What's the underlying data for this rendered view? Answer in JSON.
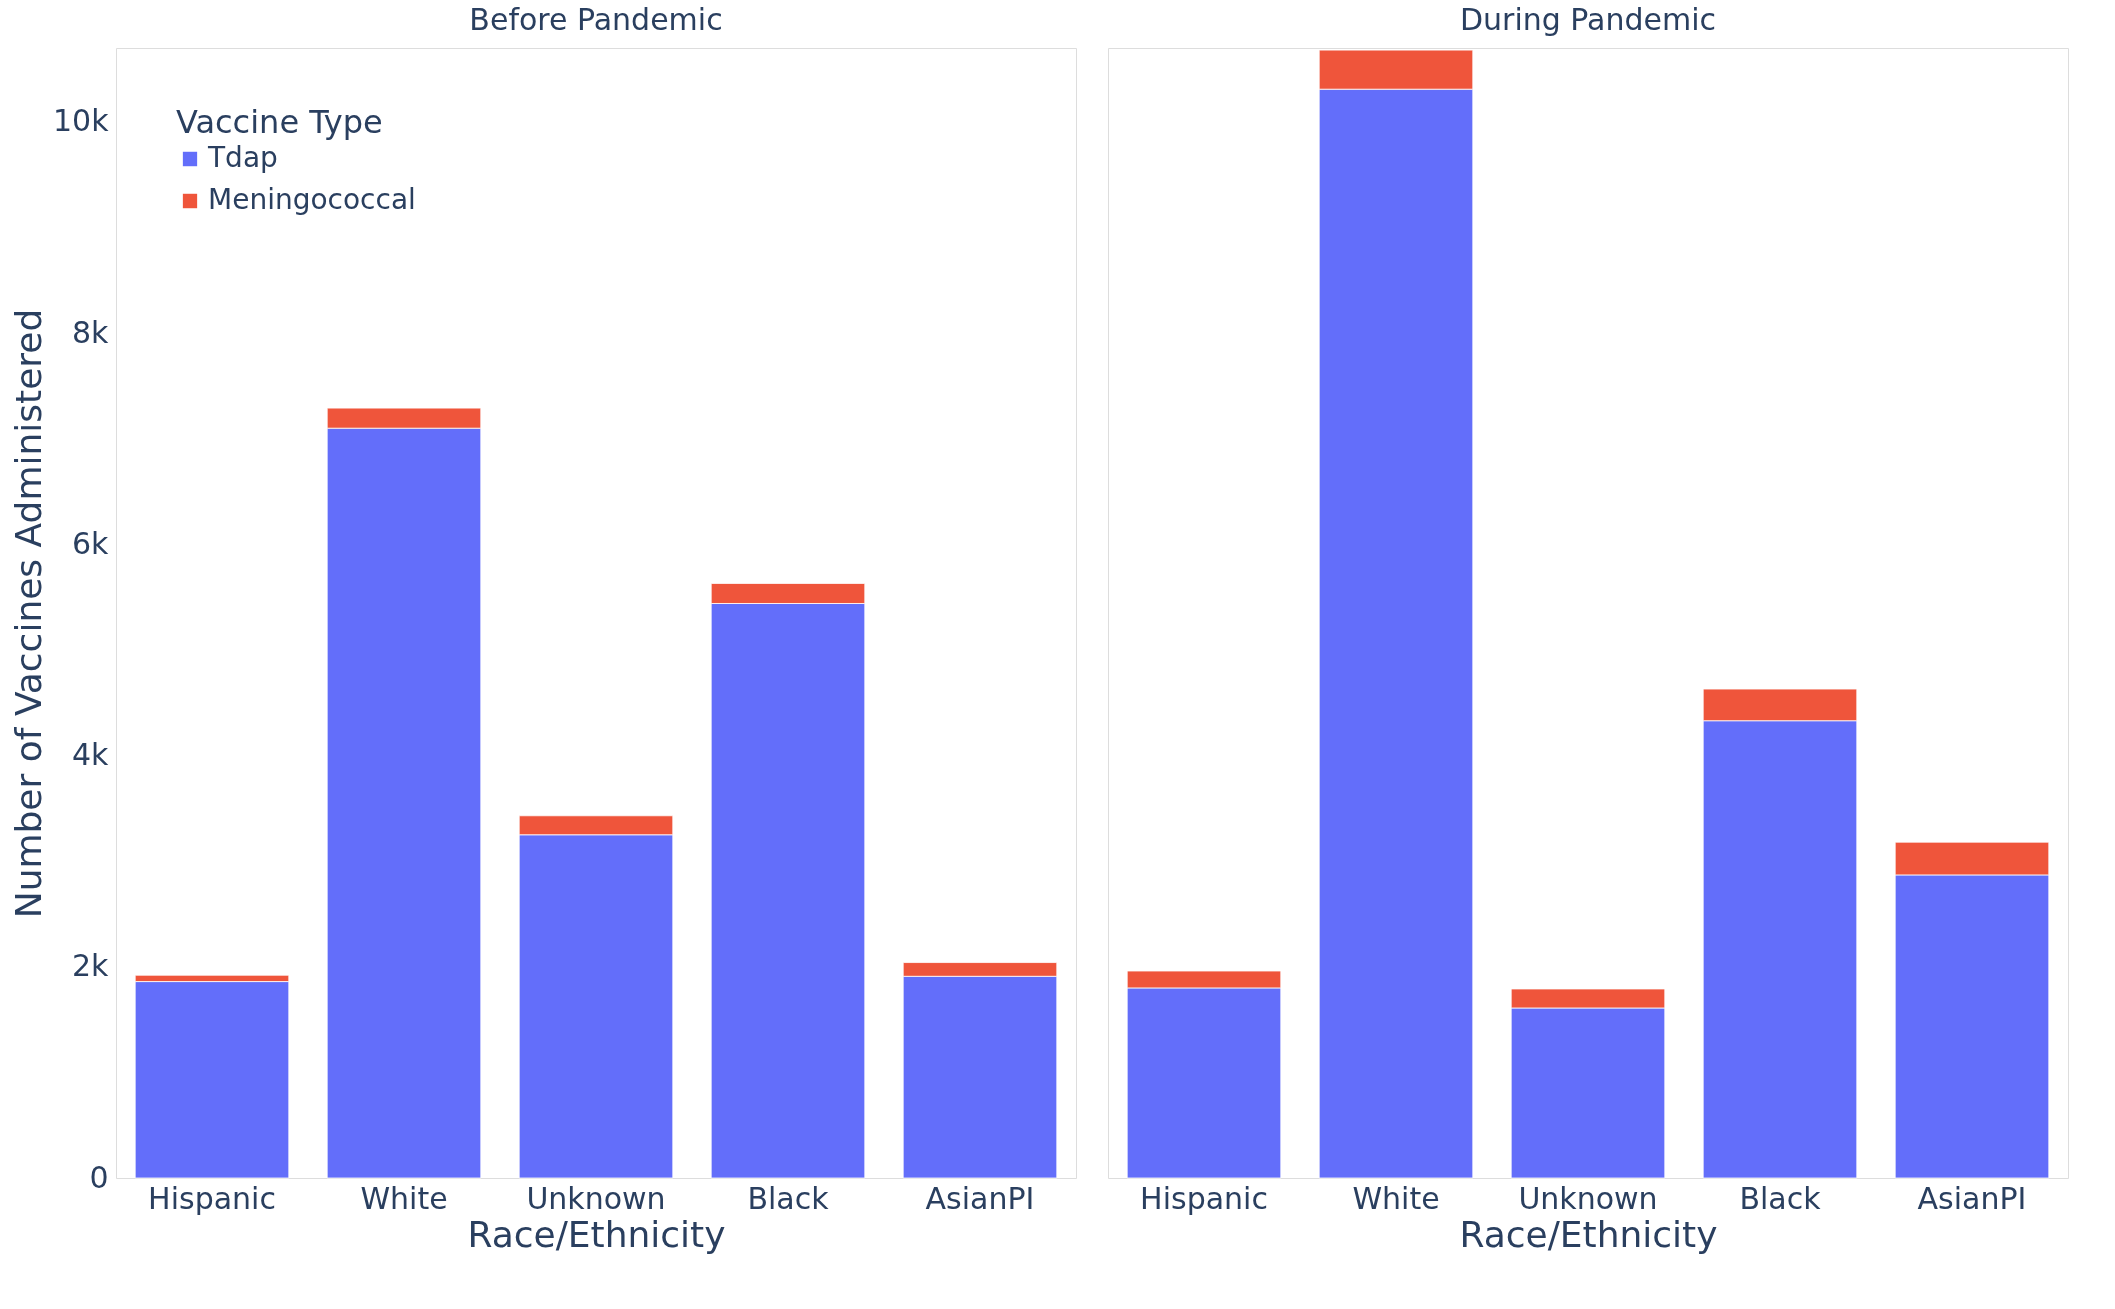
{
  "chart_data": [
    {
      "type": "bar",
      "title": "Before Pandemic",
      "xlabel": "Race/Ethnicity",
      "ylabel": "Number of Vaccines Administered",
      "legend_title": "Vaccine Type",
      "legend": "top left",
      "stacked": true,
      "grid": false,
      "categories": [
        "Hispanic",
        "White",
        "Unknown",
        "Black",
        "AsianPI"
      ],
      "series": [
        {
          "name": "Tdap",
          "color": "#636efa",
          "values": [
            1860,
            7100,
            3250,
            5440,
            1910
          ]
        },
        {
          "name": "Meningococcal",
          "color": "#ef553b",
          "values": [
            60,
            190,
            180,
            190,
            130
          ]
        }
      ],
      "ylim": [
        0,
        10700
      ],
      "yticks": [
        0,
        {
          "value": 2000,
          "label": "2k"
        },
        {
          "value": 4000,
          "label": "4k"
        },
        {
          "value": 6000,
          "label": "6k"
        },
        {
          "value": 8000,
          "label": "8k"
        },
        {
          "value": 10000,
          "label": "10k"
        }
      ]
    },
    {
      "type": "bar",
      "title": "During Pandemic",
      "xlabel": "Race/Ethnicity",
      "legend": false,
      "stacked": true,
      "grid": false,
      "tick_labels": "x",
      "categories": [
        "Hispanic",
        "White",
        "Unknown",
        "Black",
        "AsianPI"
      ],
      "series": [
        {
          "name": "Tdap",
          "color": "#636efa",
          "values": [
            1800,
            10310,
            1610,
            4330,
            2870
          ]
        },
        {
          "name": "Meningococcal",
          "color": "#ef553b",
          "values": [
            160,
            370,
            180,
            300,
            310
          ]
        }
      ],
      "ylim": [
        0,
        10700
      ]
    }
  ]
}
